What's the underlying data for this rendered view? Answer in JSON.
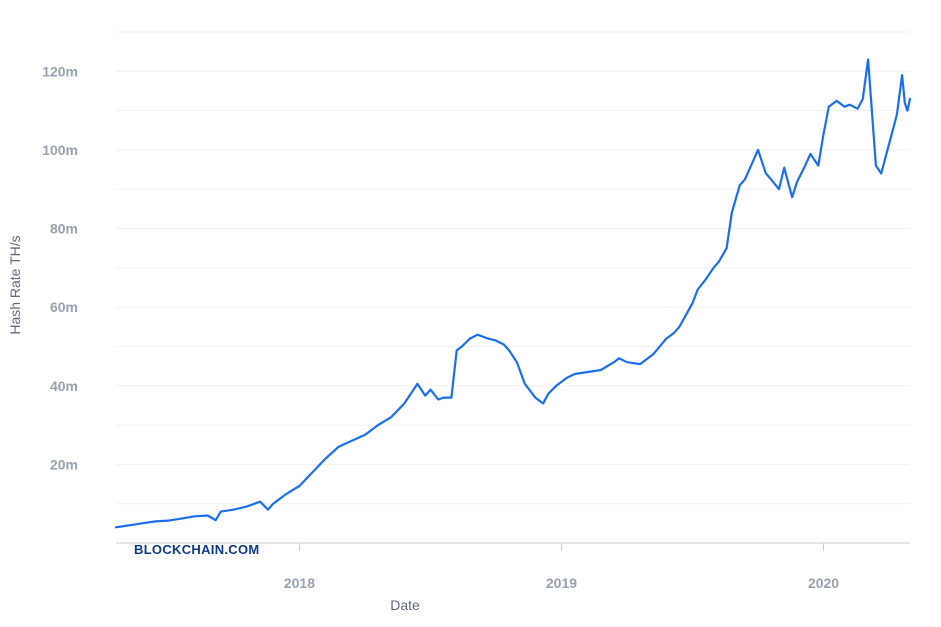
{
  "watermark": "BLOCKCHAIN.COM",
  "chart_data": {
    "type": "line",
    "xlabel": "Date",
    "ylabel": "Hash Rate TH/s",
    "x_ticks": [
      {
        "label": "2018",
        "value": 2018.0
      },
      {
        "label": "2019",
        "value": 2019.0
      },
      {
        "label": "2020",
        "value": 2020.0
      }
    ],
    "y_ticks": [
      {
        "label": "20m",
        "value": 20
      },
      {
        "label": "40m",
        "value": 40
      },
      {
        "label": "60m",
        "value": 60
      },
      {
        "label": "80m",
        "value": 80
      },
      {
        "label": "100m",
        "value": 100
      },
      {
        "label": "120m",
        "value": 120
      }
    ],
    "xlim": [
      2017.3,
      2020.33
    ],
    "ylim": [
      0,
      130
    ],
    "grid": true,
    "legend": "none",
    "colors": {
      "series": "#1a6ff0",
      "grid": "#eef0f3",
      "axis": "#c9ced6"
    },
    "series": [
      {
        "x": [
          2017.3,
          2017.35,
          2017.4,
          2017.45,
          2017.5,
          2017.55,
          2017.6,
          2017.65,
          2017.68,
          2017.7,
          2017.75,
          2017.8,
          2017.85,
          2017.88,
          2017.9,
          2017.95,
          2018.0,
          2018.05,
          2018.1,
          2018.15,
          2018.2,
          2018.25,
          2018.3,
          2018.35,
          2018.4,
          2018.45,
          2018.48,
          2018.5,
          2018.53,
          2018.55,
          2018.58,
          2018.6,
          2018.62,
          2018.65,
          2018.68,
          2018.72,
          2018.75,
          2018.78,
          2018.8,
          2018.83,
          2018.86,
          2018.9,
          2018.93,
          2018.95,
          2018.98,
          2019.02,
          2019.05,
          2019.1,
          2019.15,
          2019.2,
          2019.22,
          2019.25,
          2019.3,
          2019.35,
          2019.4,
          2019.43,
          2019.45,
          2019.5,
          2019.52,
          2019.55,
          2019.58,
          2019.6,
          2019.63,
          2019.65,
          2019.68,
          2019.7,
          2019.73,
          2019.75,
          2019.78,
          2019.8,
          2019.83,
          2019.85,
          2019.88,
          2019.9,
          2019.93,
          2019.95,
          2019.98,
          2020.0,
          2020.02,
          2020.05,
          2020.08,
          2020.1,
          2020.13,
          2020.15,
          2020.17,
          2020.19,
          2020.2,
          2020.22,
          2020.24,
          2020.26,
          2020.28,
          2020.3,
          2020.31,
          2020.32,
          2020.33
        ],
        "y": [
          4,
          4.5,
          5,
          5.5,
          5.7,
          6.2,
          6.8,
          7,
          5.8,
          8,
          8.5,
          9.3,
          10.5,
          8.5,
          10,
          12.5,
          14.5,
          18,
          21.5,
          24.5,
          26,
          27.5,
          30,
          32,
          35.5,
          40.5,
          37.5,
          39,
          36.5,
          37,
          37,
          49,
          50,
          52,
          53,
          52,
          51.5,
          50.5,
          49,
          46,
          40.5,
          37,
          35.5,
          38,
          40,
          42,
          43,
          43.5,
          44,
          46,
          47,
          46,
          45.5,
          48,
          52,
          53.5,
          55,
          61,
          64.5,
          67,
          70,
          71.5,
          75,
          84,
          91,
          92.5,
          97,
          100,
          94,
          92.5,
          90,
          95.5,
          88,
          92,
          96,
          99,
          96,
          104,
          111,
          112.5,
          111,
          111.5,
          110.5,
          113,
          123,
          105,
          96,
          94,
          99,
          104,
          109,
          119,
          112,
          110,
          113
        ]
      }
    ]
  }
}
